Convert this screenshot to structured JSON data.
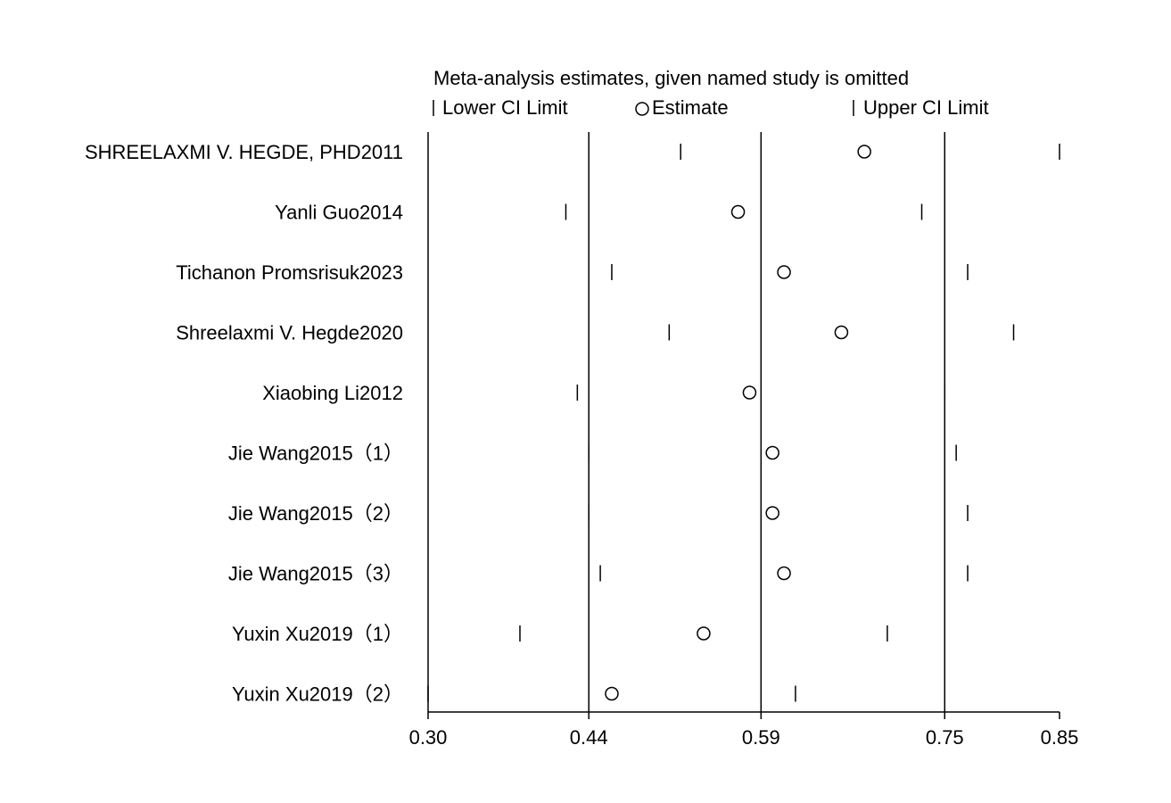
{
  "chart_data": {
    "type": "scatter",
    "title": "Meta-analysis estimates, given named study is omitted",
    "legend": {
      "lower": "Lower CI Limit",
      "estimate": "Estimate",
      "upper": "Upper CI Limit",
      "placement": "top"
    },
    "xlim": [
      0.3,
      0.85
    ],
    "xticks": [
      "0.30",
      "0.44",
      "0.59",
      "0.75",
      "0.85"
    ],
    "xtick_values": [
      0.3,
      0.44,
      0.59,
      0.75,
      0.85
    ],
    "reference_lines": [
      0.44,
      0.59,
      0.75
    ],
    "studies": [
      {
        "label": "SHREELAXMI V. HEGDE, PHD2011",
        "lower": 0.52,
        "estimate": 0.68,
        "upper": 0.85
      },
      {
        "label": "Yanli Guo2014",
        "lower": 0.42,
        "estimate": 0.57,
        "upper": 0.73
      },
      {
        "label": "Tichanon Promsrisuk2023",
        "lower": 0.46,
        "estimate": 0.61,
        "upper": 0.77
      },
      {
        "label": "Shreelaxmi V. Hegde2020",
        "lower": 0.51,
        "estimate": 0.66,
        "upper": 0.81
      },
      {
        "label": "Xiaobing Li2012",
        "lower": 0.43,
        "estimate": 0.58,
        "upper": 0.75
      },
      {
        "label": "Jie Wang2015（1）",
        "lower": 0.44,
        "estimate": 0.6,
        "upper": 0.76
      },
      {
        "label": "Jie Wang2015（2）",
        "lower": 0.44,
        "estimate": 0.6,
        "upper": 0.77
      },
      {
        "label": "Jie Wang2015（3）",
        "lower": 0.45,
        "estimate": 0.61,
        "upper": 0.77
      },
      {
        "label": "Yuxin  Xu2019（1）",
        "lower": 0.38,
        "estimate": 0.54,
        "upper": 0.7
      },
      {
        "label": "Yuxin  Xu2019（2）",
        "lower": 0.3,
        "estimate": 0.46,
        "upper": 0.62
      }
    ],
    "grid": false
  }
}
